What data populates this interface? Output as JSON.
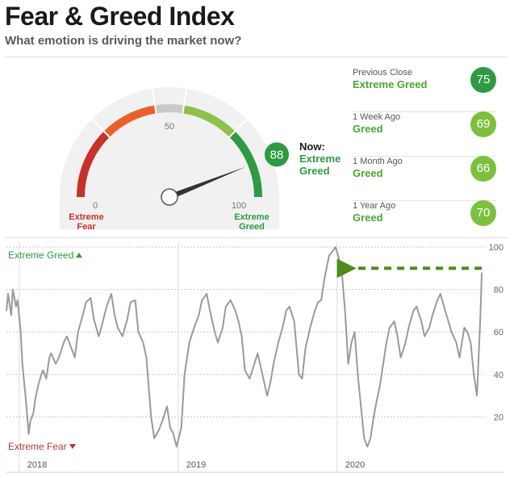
{
  "header": {
    "title": "Fear & Greed Index",
    "subtitle": "What emotion is driving the market now?"
  },
  "gauge": {
    "value": 88,
    "min_label": "0",
    "mid_label": "50",
    "max_label": "100",
    "left_label_line1": "Extreme",
    "left_label_line2": "Fear",
    "right_label_line1": "Extreme",
    "right_label_line2": "Greed",
    "now_label": "Now:",
    "now_rating": "Extreme Greed"
  },
  "history": [
    {
      "period": "Previous Close",
      "rating": "Extreme Greed",
      "value": 75,
      "color": "#2e9a43"
    },
    {
      "period": "1 Week Ago",
      "rating": "Greed",
      "value": 69,
      "color": "#7cc03d"
    },
    {
      "period": "1 Month Ago",
      "rating": "Greed",
      "value": 66,
      "color": "#7cc03d"
    },
    {
      "period": "1 Year Ago",
      "rating": "Greed",
      "value": 70,
      "color": "#7cc03d"
    }
  ],
  "colors": {
    "extreme_fear": "#c8302a",
    "fear": "#e9612a",
    "neutral": "#c9c9c9",
    "greed": "#8fc04a",
    "extreme_greed": "#2e9a43",
    "track": "#f1f1f1",
    "line": "#9a9a9a",
    "arrow": "#4e8b1d"
  },
  "chart_data": {
    "type": "line",
    "ylim": [
      0,
      100
    ],
    "yticks": [
      20,
      40,
      60,
      80,
      100
    ],
    "top_label": "Extreme Greed",
    "bottom_label": "Extreme Fear",
    "x_tick_labels": [
      "2018",
      "2019",
      "2020"
    ],
    "x_tick_positions": [
      2018.0,
      2019.0,
      2020.0
    ],
    "xlim": [
      2017.92,
      2020.93
    ],
    "arrow": {
      "from_x": 2020.91,
      "to_x": 2020.06,
      "y": 90
    },
    "series": [
      {
        "x": [
          2017.92,
          2017.93,
          2017.95,
          2017.96,
          2017.98,
          2017.99,
          2018.01,
          2018.02,
          2018.04,
          2018.06,
          2018.07,
          2018.09,
          2018.1,
          2018.12,
          2018.14,
          2018.15,
          2018.17,
          2018.19,
          2018.2,
          2018.23,
          2018.25,
          2018.28,
          2018.3,
          2018.33,
          2018.35,
          2018.37,
          2018.4,
          2018.42,
          2018.45,
          2018.47,
          2018.5,
          2018.52,
          2018.55,
          2018.58,
          2018.6,
          2018.62,
          2018.65,
          2018.68,
          2018.7,
          2018.73,
          2018.75,
          2018.78,
          2018.8,
          2018.83,
          2018.85,
          2018.88,
          2018.9,
          2018.93,
          2018.95,
          2018.97,
          2018.99,
          2019.02,
          2019.04,
          2019.07,
          2019.1,
          2019.13,
          2019.15,
          2019.18,
          2019.2,
          2019.23,
          2019.25,
          2019.28,
          2019.3,
          2019.33,
          2019.36,
          2019.38,
          2019.4,
          2019.42,
          2019.45,
          2019.48,
          2019.5,
          2019.53,
          2019.56,
          2019.58,
          2019.6,
          2019.63,
          2019.66,
          2019.68,
          2019.7,
          2019.73,
          2019.76,
          2019.78,
          2019.8,
          2019.83,
          2019.86,
          2019.88,
          2019.9,
          2019.92,
          2019.95,
          2019.97,
          2019.99,
          2020.01,
          2020.03,
          2020.05,
          2020.07,
          2020.09,
          2020.11,
          2020.13,
          2020.15,
          2020.17,
          2020.19,
          2020.21,
          2020.23,
          2020.25,
          2020.27,
          2020.29,
          2020.31,
          2020.33,
          2020.36,
          2020.38,
          2020.4,
          2020.43,
          2020.45,
          2020.48,
          2020.5,
          2020.53,
          2020.55,
          2020.58,
          2020.6,
          2020.63,
          2020.65,
          2020.68,
          2020.7,
          2020.72,
          2020.75,
          2020.77,
          2020.8,
          2020.82,
          2020.84,
          2020.86,
          2020.88,
          2020.9,
          2020.91
        ],
        "y": [
          70,
          78,
          68,
          80,
          72,
          75,
          60,
          45,
          30,
          12,
          18,
          22,
          28,
          35,
          40,
          42,
          38,
          48,
          50,
          45,
          48,
          55,
          58,
          52,
          48,
          60,
          68,
          74,
          76,
          66,
          58,
          63,
          72,
          78,
          68,
          62,
          58,
          66,
          74,
          75,
          60,
          55,
          48,
          20,
          10,
          14,
          18,
          25,
          15,
          12,
          6,
          15,
          40,
          55,
          62,
          68,
          75,
          78,
          70,
          60,
          55,
          62,
          72,
          75,
          70,
          65,
          58,
          42,
          38,
          45,
          50,
          40,
          30,
          36,
          45,
          55,
          63,
          70,
          72,
          65,
          40,
          38,
          52,
          62,
          70,
          74,
          75,
          85,
          96,
          98,
          100,
          95,
          88,
          70,
          45,
          55,
          60,
          40,
          25,
          10,
          6,
          10,
          20,
          28,
          35,
          45,
          55,
          62,
          65,
          58,
          48,
          55,
          62,
          70,
          72,
          65,
          58,
          62,
          68,
          75,
          78,
          70,
          65,
          60,
          55,
          48,
          62,
          60,
          55,
          40,
          30,
          65,
          88
        ]
      }
    ]
  }
}
